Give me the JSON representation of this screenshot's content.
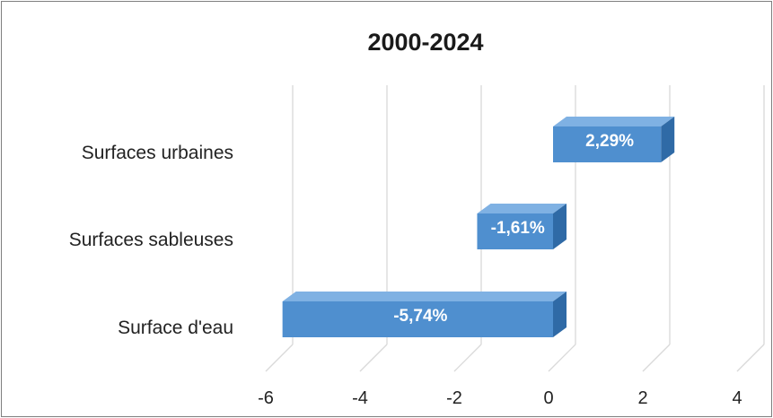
{
  "chart_data": {
    "type": "bar",
    "orientation": "horizontal",
    "style": "3d",
    "title": "2000-2024",
    "xlabel": "",
    "ylabel": "",
    "categories": [
      "Surfaces urbaines",
      "Surfaces sableuses",
      "Surface d'eau"
    ],
    "values": [
      2.29,
      -1.61,
      -5.74
    ],
    "data_labels": [
      "2,29%",
      "-1,61%",
      "-5,74%"
    ],
    "xlim": [
      -6,
      4
    ],
    "xticks": [
      -6,
      -4,
      -2,
      0,
      2,
      4
    ],
    "tick_labels": [
      "-6",
      "-4",
      "-2",
      "0",
      "2",
      "4"
    ],
    "grid": true,
    "legend": "none",
    "bar_color": "#4f8fcf"
  }
}
